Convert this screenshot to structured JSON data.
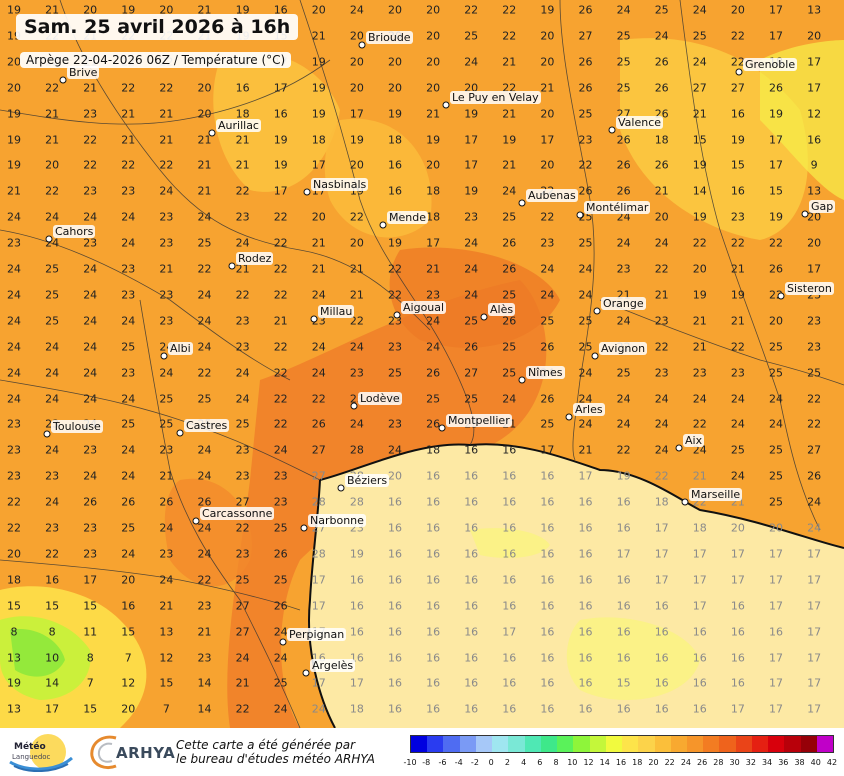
{
  "title": "Sam. 25 avril 2026 à 16h",
  "subtitle": "Arpège 22-04-2026 06Z / Température (°C)",
  "footer": {
    "logo_meteo": "Météo",
    "logo_meteo_sub": "Languedoc",
    "logo_arhya": "ARHYA",
    "note_line1": "Cette carte a été générée par",
    "note_line2": "le bureau d'études météo ARHYA"
  },
  "colorbar": {
    "ticks": [
      "-10",
      "-8",
      "-6",
      "-4",
      "-2",
      "0",
      "2",
      "4",
      "6",
      "8",
      "10",
      "12",
      "14",
      "16",
      "18",
      "20",
      "22",
      "24",
      "26",
      "28",
      "30",
      "32",
      "34",
      "36",
      "38",
      "40",
      "42"
    ],
    "colors": [
      "#0000e0",
      "#2a3cf0",
      "#4f6cf2",
      "#7a9af5",
      "#a6c8f8",
      "#9fe6f0",
      "#7ae8d6",
      "#4fe8b4",
      "#3ee88a",
      "#5af25a",
      "#8ef53a",
      "#c4f73a",
      "#f1fa3e",
      "#fde44a",
      "#fcd34a",
      "#fbbf3a",
      "#f8a930",
      "#f6952a",
      "#f37c22",
      "#ef631c",
      "#ea4418",
      "#e52012",
      "#d8000c",
      "#b8000a",
      "#960008",
      "#c000c8"
    ]
  },
  "cities": [
    {
      "name": "Brioude"
    },
    {
      "name": "Brive"
    },
    {
      "name": "Grenoble"
    },
    {
      "name": "Le Puy en Velay"
    },
    {
      "name": "Aurillac"
    },
    {
      "name": "Valence"
    },
    {
      "name": "Nasbinals"
    },
    {
      "name": "Aubenas"
    },
    {
      "name": "Mende"
    },
    {
      "name": "Montélimar"
    },
    {
      "name": "Gap"
    },
    {
      "name": "Cahors"
    },
    {
      "name": "Rodez"
    },
    {
      "name": "Sisteron"
    },
    {
      "name": "Millau"
    },
    {
      "name": "Aigoual"
    },
    {
      "name": "Alès"
    },
    {
      "name": "Orange"
    },
    {
      "name": "Albi"
    },
    {
      "name": "Avignon"
    },
    {
      "name": "Nîmes"
    },
    {
      "name": "Lodève"
    },
    {
      "name": "Arles"
    },
    {
      "name": "Montpellier"
    },
    {
      "name": "Toulouse"
    },
    {
      "name": "Castres"
    },
    {
      "name": "Aix"
    },
    {
      "name": "Béziers"
    },
    {
      "name": "Marseille"
    },
    {
      "name": "Carcassonne"
    },
    {
      "name": "Narbonne"
    },
    {
      "name": "Perpignan"
    },
    {
      "name": "Argelès"
    }
  ],
  "grid": [
    [
      19,
      21,
      20,
      19,
      20,
      21,
      19,
      16,
      20,
      24,
      20,
      20,
      22,
      22,
      19,
      26,
      24,
      25,
      24,
      20,
      17,
      13
    ],
    [
      19,
      22,
      21,
      22,
      22,
      21,
      19,
      15,
      21,
      20,
      20,
      20,
      25,
      22,
      20,
      27,
      25,
      24,
      25,
      22,
      17,
      20
    ],
    [
      20,
      22,
      21,
      22,
      22,
      20,
      16,
      17,
      19,
      20,
      20,
      20,
      24,
      21,
      20,
      26,
      25,
      26,
      24,
      22,
      18,
      17
    ],
    [
      20,
      22,
      21,
      22,
      22,
      20,
      16,
      17,
      19,
      20,
      20,
      20,
      20,
      22,
      21,
      26,
      25,
      26,
      27,
      27,
      26,
      17
    ],
    [
      19,
      21,
      23,
      21,
      21,
      20,
      18,
      16,
      19,
      17,
      19,
      21,
      19,
      21,
      20,
      25,
      27,
      26,
      21,
      16,
      19,
      12
    ],
    [
      19,
      21,
      22,
      21,
      21,
      21,
      21,
      19,
      18,
      19,
      18,
      19,
      17,
      19,
      17,
      23,
      26,
      18,
      15,
      19,
      17,
      16
    ],
    [
      19,
      20,
      22,
      22,
      22,
      21,
      21,
      19,
      17,
      20,
      16,
      20,
      17,
      21,
      20,
      22,
      26,
      26,
      19,
      15,
      17,
      9
    ],
    [
      21,
      22,
      23,
      23,
      24,
      21,
      22,
      17,
      17,
      19,
      16,
      18,
      19,
      24,
      22,
      26,
      26,
      21,
      14,
      16,
      15,
      13
    ],
    [
      24,
      24,
      24,
      24,
      23,
      24,
      23,
      22,
      20,
      22,
      22,
      18,
      23,
      25,
      22,
      25,
      24,
      20,
      19,
      23,
      19,
      20
    ],
    [
      23,
      24,
      23,
      24,
      23,
      25,
      24,
      22,
      21,
      20,
      19,
      17,
      24,
      26,
      23,
      25,
      24,
      24,
      22,
      22,
      22,
      20
    ],
    [
      24,
      25,
      24,
      23,
      21,
      22,
      21,
      22,
      21,
      21,
      22,
      21,
      24,
      26,
      24,
      24,
      23,
      22,
      20,
      21,
      26,
      17
    ],
    [
      24,
      25,
      24,
      23,
      23,
      24,
      22,
      22,
      24,
      21,
      22,
      23,
      24,
      25,
      24,
      24,
      21,
      21,
      19,
      19,
      22,
      23
    ],
    [
      24,
      25,
      24,
      24,
      23,
      24,
      23,
      21,
      23,
      22,
      23,
      24,
      25,
      26,
      25,
      25,
      24,
      23,
      21,
      21,
      20,
      23
    ],
    [
      24,
      24,
      24,
      25,
      24,
      24,
      23,
      22,
      24,
      24,
      23,
      24,
      26,
      25,
      26,
      25,
      22,
      22,
      21,
      22,
      25,
      23
    ],
    [
      24,
      24,
      24,
      23,
      24,
      22,
      24,
      22,
      24,
      23,
      25,
      26,
      27,
      25,
      24,
      24,
      25,
      23,
      23,
      23,
      25,
      25
    ],
    [
      24,
      24,
      24,
      24,
      25,
      25,
      24,
      22,
      22,
      23,
      24,
      25,
      25,
      24,
      26,
      24,
      24,
      24,
      24,
      24,
      24,
      22
    ],
    [
      23,
      23,
      24,
      25,
      25,
      25,
      25,
      22,
      26,
      24,
      23,
      26,
      23,
      21,
      25,
      24,
      24,
      24,
      22,
      24,
      24,
      22
    ],
    [
      23,
      24,
      23,
      24,
      23,
      24,
      23,
      24,
      27,
      28,
      24,
      18,
      16,
      16,
      17,
      21,
      22,
      24,
      24,
      25,
      25,
      27
    ],
    [
      23,
      23,
      24,
      24,
      21,
      24,
      23,
      23,
      27,
      28,
      20,
      16,
      16,
      16,
      16,
      17,
      19,
      22,
      21,
      24,
      25,
      26
    ],
    [
      22,
      24,
      26,
      26,
      26,
      26,
      27,
      23,
      28,
      28,
      16,
      16,
      16,
      16,
      16,
      16,
      16,
      18,
      22,
      21,
      25,
      24
    ],
    [
      22,
      23,
      23,
      25,
      24,
      24,
      22,
      25,
      27,
      23,
      16,
      16,
      16,
      16,
      16,
      16,
      16,
      17,
      18,
      20,
      20,
      24
    ],
    [
      20,
      22,
      23,
      24,
      23,
      24,
      23,
      26,
      28,
      19,
      16,
      16,
      16,
      16,
      16,
      16,
      17,
      17,
      17,
      17,
      17,
      17
    ],
    [
      18,
      16,
      17,
      20,
      24,
      22,
      25,
      25,
      17,
      16,
      16,
      16,
      16,
      16,
      16,
      16,
      16,
      17,
      17,
      17,
      17,
      17
    ],
    [
      15,
      15,
      15,
      16,
      21,
      23,
      27,
      26,
      17,
      16,
      16,
      16,
      16,
      16,
      16,
      16,
      16,
      16,
      17,
      16,
      17,
      17
    ],
    [
      8,
      8,
      11,
      15,
      13,
      21,
      27,
      24,
      17,
      16,
      16,
      16,
      16,
      17,
      16,
      16,
      16,
      16,
      16,
      16,
      16,
      17
    ],
    [
      13,
      10,
      8,
      7,
      12,
      23,
      24,
      24,
      16,
      16,
      16,
      16,
      16,
      16,
      16,
      16,
      16,
      16,
      16,
      16,
      17,
      17
    ],
    [
      19,
      14,
      7,
      12,
      15,
      14,
      21,
      25,
      17,
      17,
      16,
      16,
      16,
      16,
      16,
      16,
      15,
      16,
      16,
      16,
      17,
      17
    ],
    [
      13,
      17,
      15,
      20,
      7,
      14,
      22,
      24,
      24,
      18,
      16,
      16,
      16,
      16,
      16,
      16,
      16,
      16,
      16,
      17,
      17,
      17
    ]
  ]
}
